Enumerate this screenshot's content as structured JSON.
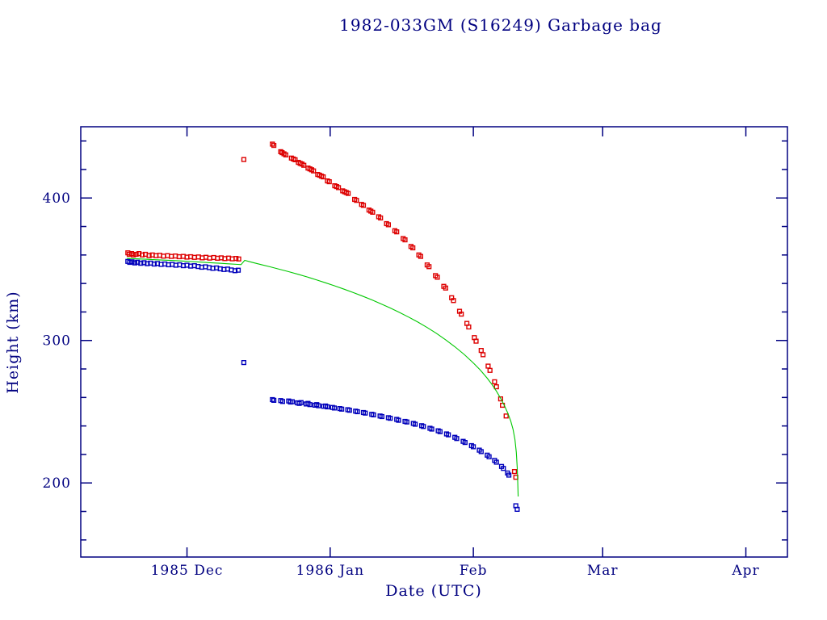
{
  "title": "1982-033GM (S16249) Garbage bag",
  "colors": {
    "axis": "#000080",
    "apogee": "#dd0000",
    "perigee": "#0000bb",
    "model_line": "#00c800",
    "background": "#ffffff"
  },
  "chart_data": {
    "type": "scatter",
    "title": "1982-033GM (S16249) Garbage bag",
    "xlabel": "Date (UTC)",
    "ylabel": "Height (km)",
    "x_unit": "days since 1985-11-01",
    "xlim": [
      7,
      160
    ],
    "ylim": [
      148,
      450
    ],
    "x_ticks": [
      {
        "day": 30,
        "label": "1985 Dec"
      },
      {
        "day": 61,
        "label": "1986 Jan"
      },
      {
        "day": 92,
        "label": "Feb"
      },
      {
        "day": 120,
        "label": "Mar"
      },
      {
        "day": 151,
        "label": "Apr"
      }
    ],
    "y_major_ticks": [
      200,
      300,
      400
    ],
    "y_minor_step": 20,
    "grid": false,
    "legend": "none",
    "series": [
      {
        "name": "apogee-height",
        "type": "scatter",
        "marker": "open-square",
        "color": "#dd0000",
        "points": [
          [
            17.2,
            361.5
          ],
          [
            17.5,
            360.5
          ],
          [
            18.0,
            361.0
          ],
          [
            18.4,
            360.0
          ],
          [
            19.0,
            360.5
          ],
          [
            19.6,
            361.0
          ],
          [
            20.3,
            360.0
          ],
          [
            21.0,
            360.5
          ],
          [
            21.8,
            359.5
          ],
          [
            22.5,
            360.0
          ],
          [
            23.3,
            359.5
          ],
          [
            24.1,
            359.8
          ],
          [
            24.9,
            359.2
          ],
          [
            25.8,
            359.5
          ],
          [
            26.6,
            359.0
          ],
          [
            27.5,
            359.3
          ],
          [
            28.3,
            358.8
          ],
          [
            29.2,
            359.0
          ],
          [
            30.0,
            358.5
          ],
          [
            30.8,
            358.8
          ],
          [
            31.6,
            358.3
          ],
          [
            32.5,
            358.6
          ],
          [
            33.3,
            358.0
          ],
          [
            34.1,
            358.4
          ],
          [
            34.9,
            357.8
          ],
          [
            35.8,
            358.2
          ],
          [
            36.6,
            357.7
          ],
          [
            37.4,
            358.0
          ],
          [
            38.2,
            357.5
          ],
          [
            39.0,
            357.8
          ],
          [
            39.8,
            357.3
          ],
          [
            40.6,
            357.6
          ],
          [
            41.2,
            357.2
          ],
          [
            42.3,
            427.0
          ],
          [
            48.5,
            437.8
          ],
          [
            48.8,
            436.9
          ],
          [
            50.3,
            432.5
          ],
          [
            50.6,
            431.8
          ],
          [
            51.0,
            431.0
          ],
          [
            51.4,
            430.2
          ],
          [
            52.6,
            428.0
          ],
          [
            53.0,
            427.4
          ],
          [
            53.4,
            426.8
          ],
          [
            54.1,
            425.0
          ],
          [
            54.5,
            424.3
          ],
          [
            54.9,
            423.8
          ],
          [
            55.3,
            423.0
          ],
          [
            56.2,
            421.0
          ],
          [
            56.6,
            420.4
          ],
          [
            57.0,
            419.8
          ],
          [
            57.4,
            419.0
          ],
          [
            58.3,
            416.5
          ],
          [
            58.7,
            416.0
          ],
          [
            59.1,
            415.3
          ],
          [
            59.5,
            414.8
          ],
          [
            60.4,
            412.0
          ],
          [
            60.8,
            411.4
          ],
          [
            62.0,
            408.6
          ],
          [
            62.4,
            408.0
          ],
          [
            62.8,
            407.3
          ],
          [
            63.7,
            405.0
          ],
          [
            64.1,
            404.4
          ],
          [
            64.5,
            403.8
          ],
          [
            64.9,
            403.2
          ],
          [
            66.3,
            399.0
          ],
          [
            66.7,
            398.3
          ],
          [
            67.8,
            395.5
          ],
          [
            68.2,
            394.8
          ],
          [
            69.4,
            391.5
          ],
          [
            69.8,
            390.8
          ],
          [
            70.2,
            390.0
          ],
          [
            71.5,
            386.8
          ],
          [
            71.9,
            386.0
          ],
          [
            73.2,
            382.0
          ],
          [
            73.6,
            381.2
          ],
          [
            75.0,
            377.0
          ],
          [
            75.4,
            376.2
          ],
          [
            76.8,
            371.5
          ],
          [
            77.2,
            370.6
          ],
          [
            78.5,
            366.0
          ],
          [
            78.9,
            365.0
          ],
          [
            80.2,
            360.0
          ],
          [
            80.6,
            359.0
          ],
          [
            82.0,
            353.0
          ],
          [
            82.4,
            351.8
          ],
          [
            83.8,
            345.5
          ],
          [
            84.2,
            344.4
          ],
          [
            85.6,
            338.0
          ],
          [
            86.0,
            336.8
          ],
          [
            87.3,
            330.0
          ],
          [
            87.7,
            328.0
          ],
          [
            89.0,
            320.5
          ],
          [
            89.4,
            318.5
          ],
          [
            90.6,
            312.0
          ],
          [
            91.0,
            309.5
          ],
          [
            92.2,
            302.0
          ],
          [
            92.6,
            299.5
          ],
          [
            93.7,
            293.0
          ],
          [
            94.1,
            290.0
          ],
          [
            95.2,
            282.0
          ],
          [
            95.6,
            279.0
          ],
          [
            96.6,
            271.0
          ],
          [
            97.0,
            267.5
          ],
          [
            97.9,
            259.0
          ],
          [
            98.3,
            254.5
          ],
          [
            99.1,
            247.0
          ],
          [
            100.9,
            208.0
          ],
          [
            101.2,
            204.0
          ]
        ]
      },
      {
        "name": "perigee-height",
        "type": "scatter",
        "marker": "open-square",
        "color": "#0000bb",
        "points": [
          [
            17.2,
            355.5
          ],
          [
            17.6,
            354.8
          ],
          [
            18.1,
            355.2
          ],
          [
            18.7,
            354.4
          ],
          [
            19.3,
            354.9
          ],
          [
            20.0,
            354.2
          ],
          [
            20.7,
            354.6
          ],
          [
            21.4,
            353.9
          ],
          [
            22.1,
            354.3
          ],
          [
            22.9,
            353.6
          ],
          [
            23.6,
            354.0
          ],
          [
            24.4,
            353.4
          ],
          [
            25.2,
            353.7
          ],
          [
            26.0,
            353.1
          ],
          [
            26.8,
            353.4
          ],
          [
            27.6,
            352.8
          ],
          [
            28.4,
            353.1
          ],
          [
            29.2,
            352.5
          ],
          [
            30.0,
            352.8
          ],
          [
            30.8,
            352.2
          ],
          [
            31.6,
            352.5
          ],
          [
            32.4,
            351.9
          ],
          [
            33.2,
            351.4
          ],
          [
            34.0,
            351.7
          ],
          [
            34.8,
            351.1
          ],
          [
            35.6,
            350.6
          ],
          [
            36.4,
            350.9
          ],
          [
            37.2,
            350.3
          ],
          [
            38.0,
            349.8
          ],
          [
            38.8,
            350.1
          ],
          [
            39.6,
            349.5
          ],
          [
            40.4,
            349.0
          ],
          [
            41.1,
            349.3
          ],
          [
            42.3,
            284.5
          ],
          [
            48.5,
            258.5
          ],
          [
            48.8,
            258.0
          ],
          [
            50.3,
            257.8
          ],
          [
            50.7,
            257.2
          ],
          [
            52.0,
            257.5
          ],
          [
            52.4,
            256.8
          ],
          [
            52.8,
            257.0
          ],
          [
            53.9,
            256.2
          ],
          [
            54.3,
            255.8
          ],
          [
            54.7,
            256.4
          ],
          [
            55.8,
            255.4
          ],
          [
            56.2,
            255.8
          ],
          [
            56.6,
            255.0
          ],
          [
            57.7,
            254.6
          ],
          [
            58.1,
            255.0
          ],
          [
            58.5,
            254.2
          ],
          [
            59.6,
            253.8
          ],
          [
            60.0,
            254.0
          ],
          [
            60.4,
            253.4
          ],
          [
            61.5,
            253.0
          ],
          [
            61.9,
            252.6
          ],
          [
            63.1,
            252.2
          ],
          [
            63.5,
            251.8
          ],
          [
            64.8,
            251.4
          ],
          [
            65.2,
            251.0
          ],
          [
            66.5,
            250.4
          ],
          [
            66.9,
            250.0
          ],
          [
            68.2,
            249.4
          ],
          [
            68.6,
            249.0
          ],
          [
            70.0,
            248.2
          ],
          [
            70.4,
            247.8
          ],
          [
            71.8,
            247.0
          ],
          [
            72.2,
            246.6
          ],
          [
            73.6,
            245.8
          ],
          [
            74.0,
            245.4
          ],
          [
            75.4,
            244.6
          ],
          [
            75.8,
            244.0
          ],
          [
            77.2,
            243.2
          ],
          [
            77.6,
            242.8
          ],
          [
            79.0,
            241.8
          ],
          [
            79.4,
            241.2
          ],
          [
            80.8,
            240.2
          ],
          [
            81.2,
            239.6
          ],
          [
            82.6,
            238.4
          ],
          [
            83.0,
            237.8
          ],
          [
            84.4,
            236.6
          ],
          [
            84.8,
            236.0
          ],
          [
            86.2,
            234.4
          ],
          [
            86.6,
            233.8
          ],
          [
            88.0,
            232.0
          ],
          [
            88.4,
            231.2
          ],
          [
            89.8,
            229.2
          ],
          [
            90.2,
            228.4
          ],
          [
            91.6,
            226.2
          ],
          [
            92.0,
            225.4
          ],
          [
            93.3,
            223.0
          ],
          [
            93.7,
            222.0
          ],
          [
            95.0,
            219.5
          ],
          [
            95.4,
            218.4
          ],
          [
            96.6,
            215.8
          ],
          [
            97.0,
            214.6
          ],
          [
            98.1,
            211.6
          ],
          [
            98.5,
            210.2
          ],
          [
            99.4,
            207.0
          ],
          [
            99.7,
            205.5
          ],
          [
            101.2,
            184.0
          ],
          [
            101.5,
            181.5
          ]
        ]
      },
      {
        "name": "model-height",
        "type": "line",
        "marker": "none",
        "color": "#00c800",
        "points": [
          [
            17,
            357.6
          ],
          [
            19,
            357.3
          ],
          [
            21,
            357.0
          ],
          [
            23,
            356.7
          ],
          [
            25,
            356.4
          ],
          [
            27,
            356.1
          ],
          [
            29,
            355.8
          ],
          [
            31,
            355.4
          ],
          [
            33,
            355.0
          ],
          [
            35,
            354.6
          ],
          [
            37,
            354.2
          ],
          [
            39,
            353.8
          ],
          [
            41,
            353.4
          ],
          [
            41.7,
            353.2
          ],
          [
            42.5,
            356.2
          ],
          [
            44,
            354.9
          ],
          [
            46,
            353.3
          ],
          [
            48,
            351.7
          ],
          [
            50,
            350.0
          ],
          [
            52,
            348.3
          ],
          [
            54,
            346.5
          ],
          [
            56,
            344.6
          ],
          [
            58,
            342.6
          ],
          [
            60,
            340.5
          ],
          [
            62,
            338.3
          ],
          [
            64,
            336.0
          ],
          [
            66,
            333.6
          ],
          [
            68,
            331.1
          ],
          [
            70,
            328.5
          ],
          [
            72,
            325.7
          ],
          [
            74,
            322.8
          ],
          [
            76,
            319.7
          ],
          [
            78,
            316.4
          ],
          [
            80,
            312.9
          ],
          [
            82,
            309.1
          ],
          [
            84,
            305.0
          ],
          [
            86,
            300.5
          ],
          [
            88,
            295.6
          ],
          [
            90,
            290.2
          ],
          [
            92,
            284.2
          ],
          [
            93.5,
            279.2
          ],
          [
            95,
            273.5
          ],
          [
            96,
            269.2
          ],
          [
            97,
            264.4
          ],
          [
            98,
            258.9
          ],
          [
            98.8,
            253.8
          ],
          [
            99.5,
            248.7
          ],
          [
            100.1,
            243.5
          ],
          [
            100.6,
            237.5
          ],
          [
            101.0,
            230.5
          ],
          [
            101.3,
            221.5
          ],
          [
            101.5,
            211.0
          ],
          [
            101.62,
            200.0
          ],
          [
            101.7,
            190.5
          ]
        ]
      }
    ]
  }
}
